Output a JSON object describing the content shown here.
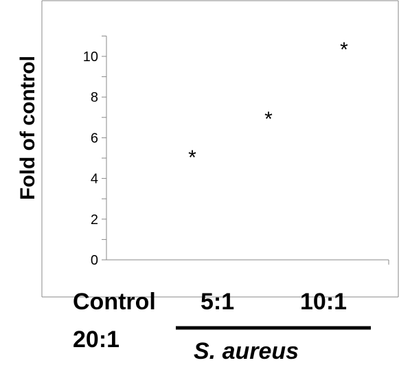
{
  "chart_data": {
    "type": "scatter",
    "ylabel": "Fold of control",
    "ylim": [
      0,
      11
    ],
    "yticks": [
      0,
      2,
      4,
      6,
      8,
      10
    ],
    "tick_labels": [
      "0",
      "2",
      "4",
      "6",
      "8",
      "10"
    ],
    "category_labels": {
      "control": "Control",
      "r5": "5:1",
      "r10": "10:1",
      "r20": "20:1"
    },
    "group_label": "S. aureus",
    "points": [
      {
        "x": 1,
        "y": 5.3,
        "marker": "*"
      },
      {
        "x": 2,
        "y": 7.2,
        "marker": "*"
      },
      {
        "x": 3,
        "y": 10.6,
        "marker": "*"
      }
    ],
    "grid": false,
    "legend": "none"
  }
}
